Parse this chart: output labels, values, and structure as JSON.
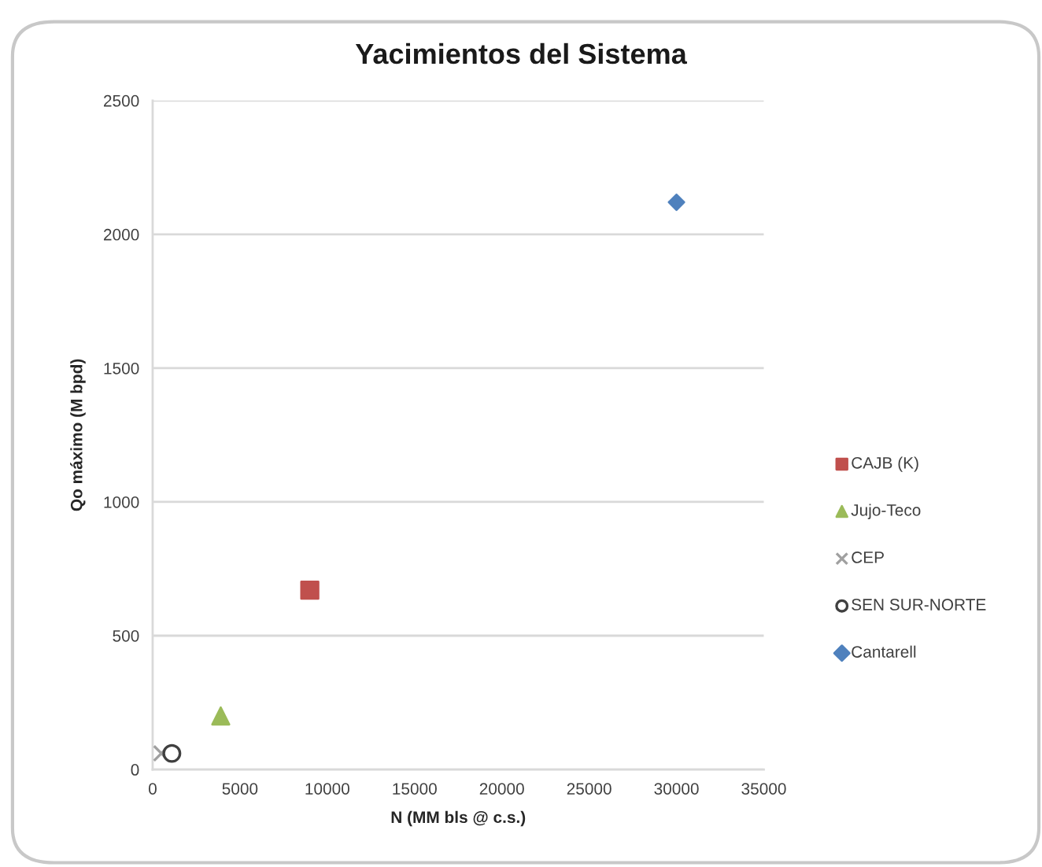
{
  "chart_data": {
    "type": "scatter",
    "title": "Yacimientos del Sistema",
    "xlabel": "N (MM bls @ c.s.)",
    "ylabel": "Qo máximo (M bpd)",
    "series": [
      {
        "name": "CAJB (K)",
        "color": "#c0504d",
        "marker": "square",
        "x": [
          9000
        ],
        "values": [
          670
        ]
      },
      {
        "name": "Jujo-Teco",
        "color": "#9bbb59",
        "marker": "triangle",
        "x": [
          3900
        ],
        "values": [
          200
        ]
      },
      {
        "name": "CEP",
        "color": "#a0a0a0",
        "marker": "cross",
        "x": [
          500
        ],
        "values": [
          60
        ]
      },
      {
        "name": "SEN SUR-NORTE",
        "color": "#404040",
        "marker": "circle",
        "x": [
          1100
        ],
        "values": [
          60
        ]
      },
      {
        "name": "Cantarell",
        "color": "#4f81bd",
        "marker": "diamond",
        "x": [
          30000
        ],
        "values": [
          2120
        ]
      }
    ],
    "xlim": [
      0,
      35000
    ],
    "xticks": [
      0,
      5000,
      10000,
      15000,
      20000,
      25000,
      30000,
      35000
    ],
    "ylim": [
      0,
      2500
    ],
    "yticks": [
      0,
      500,
      1000,
      1500,
      2000,
      2500
    ],
    "grid": "y",
    "legend": "right"
  }
}
